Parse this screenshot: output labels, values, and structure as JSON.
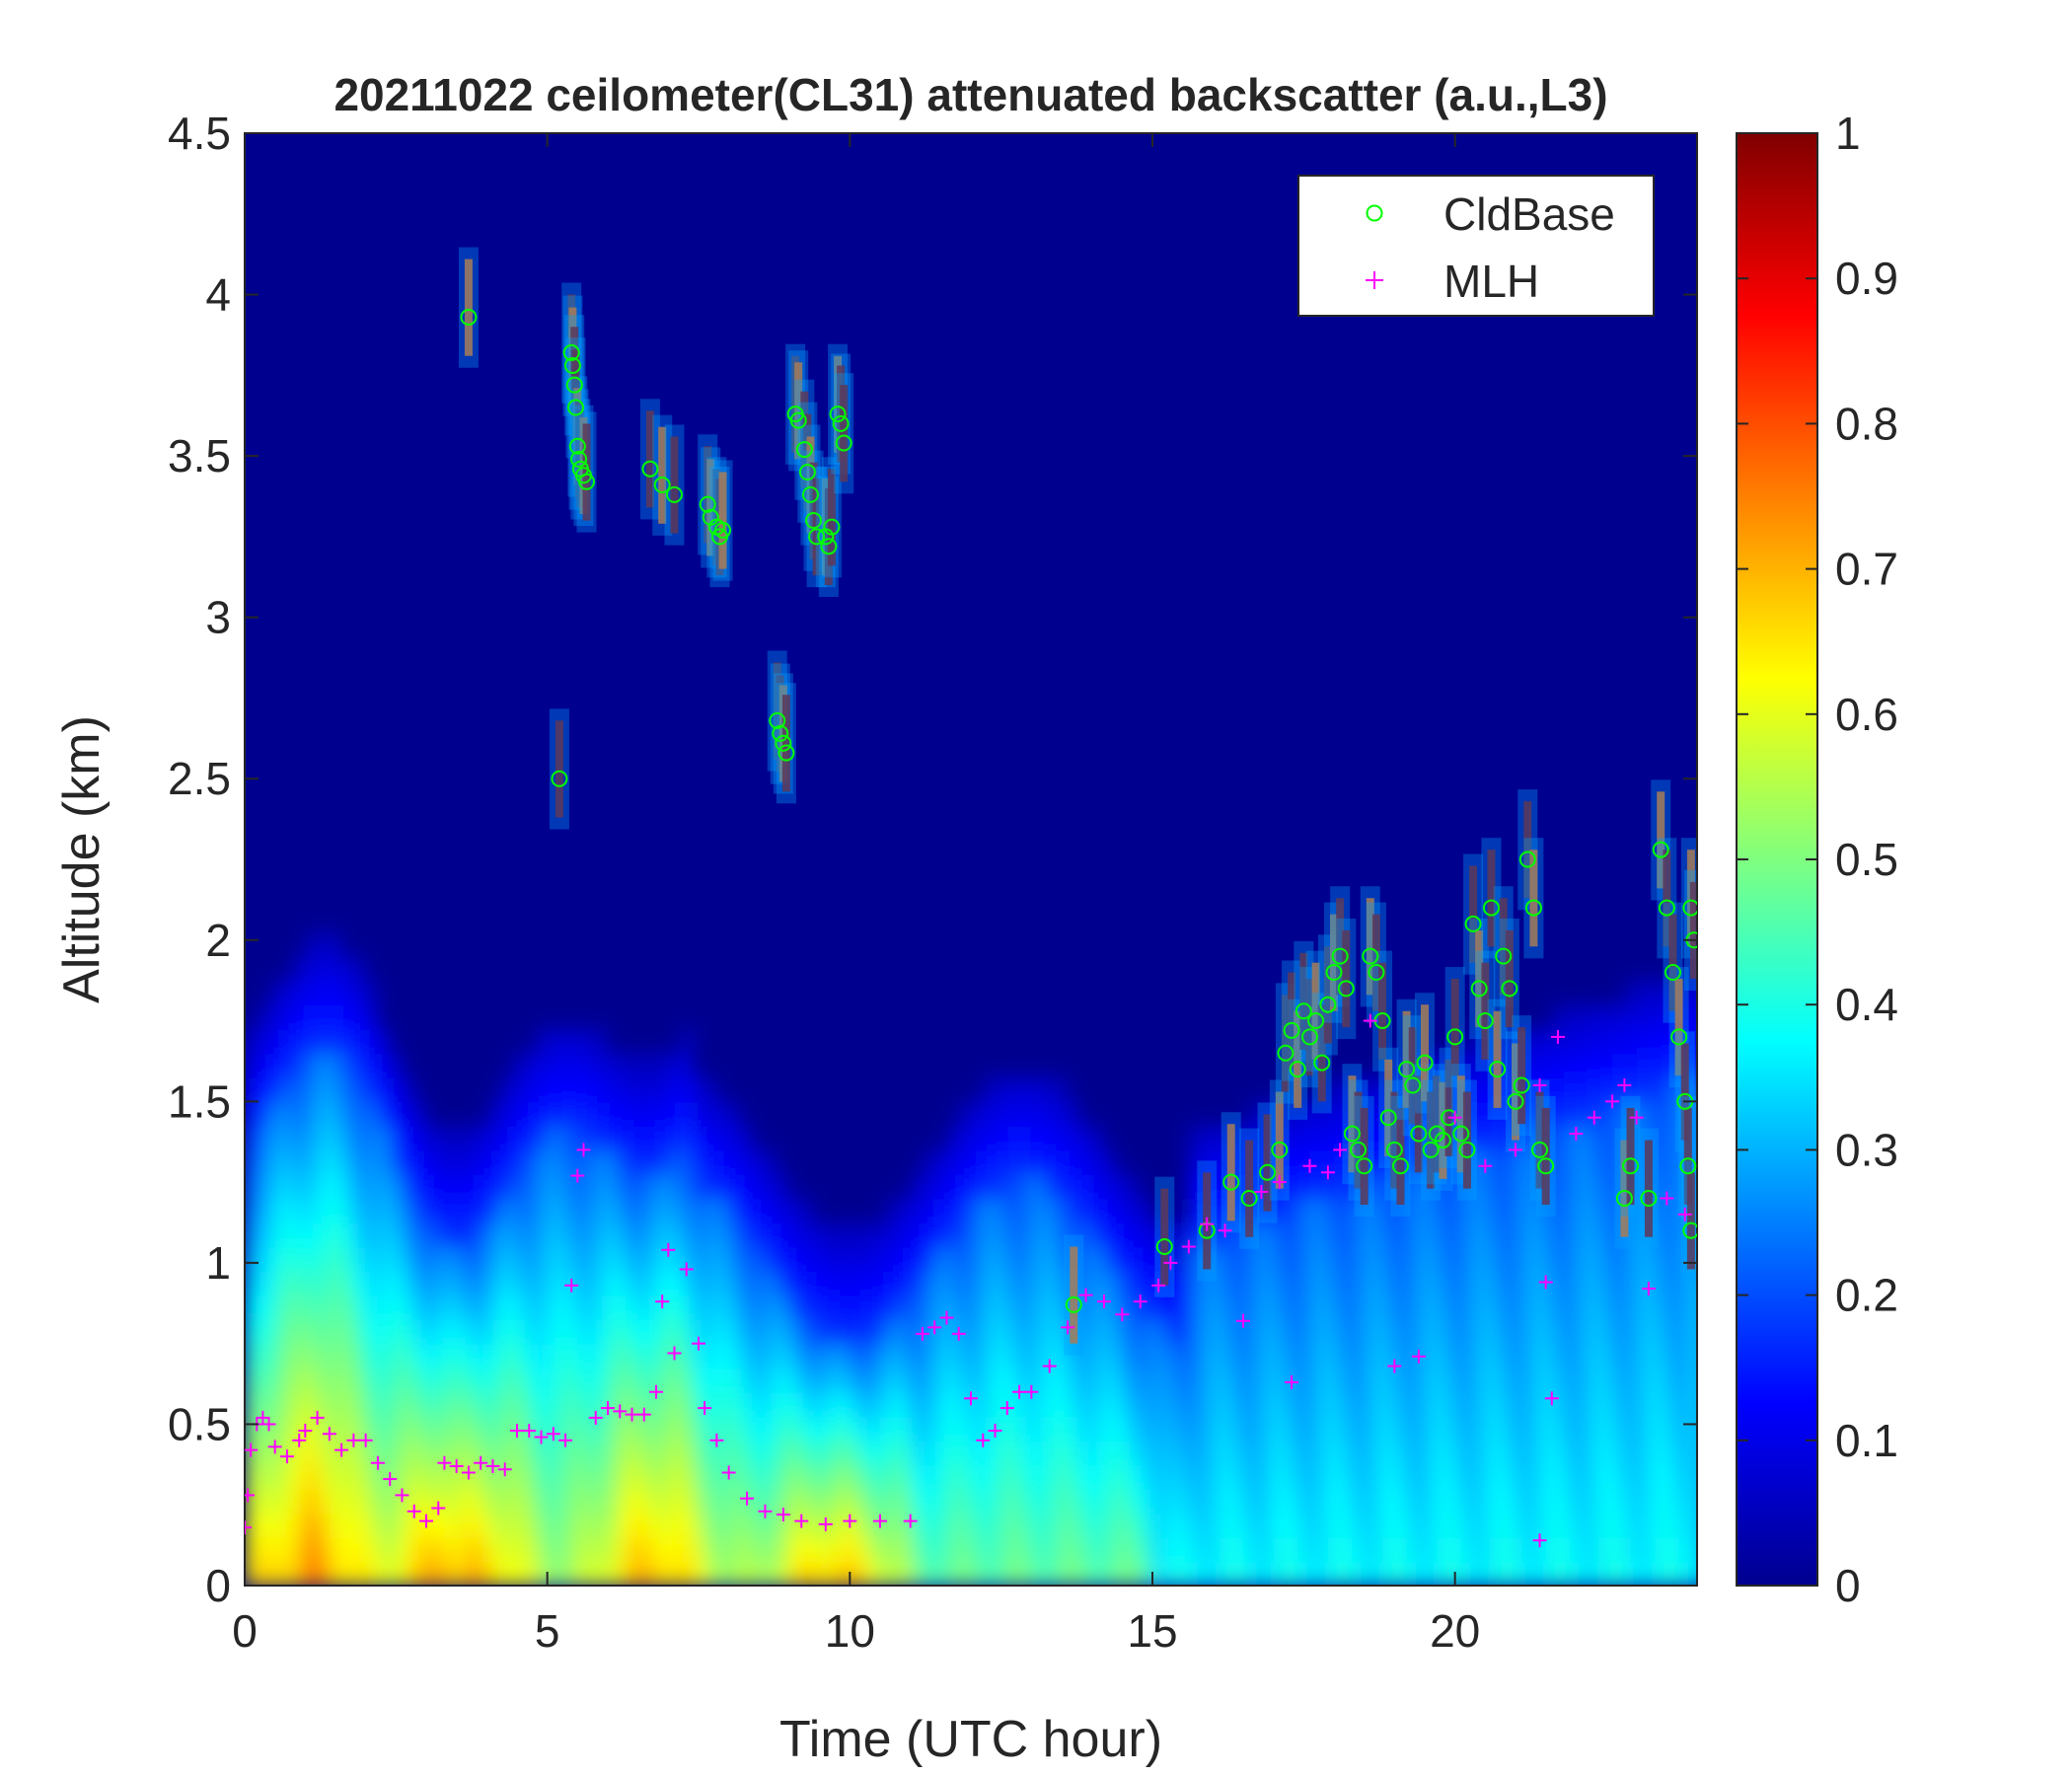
{
  "chart_data": {
    "type": "heatmap",
    "title": "20211022 ceilometer(CL31) attenuated backscatter (a.u.,L3)",
    "xlabel": "Time (UTC hour)",
    "ylabel": "Altitude (km)",
    "xlim": [
      0,
      24
    ],
    "ylim": [
      0,
      4.5
    ],
    "xticks": [
      "0",
      "5",
      "10",
      "15",
      "20"
    ],
    "xtick_values": [
      0,
      5,
      10,
      15,
      20
    ],
    "yticks": [
      "0",
      "0.5",
      "1",
      "1.5",
      "2",
      "2.5",
      "3",
      "3.5",
      "4",
      "4.5"
    ],
    "ytick_values": [
      0,
      0.5,
      1,
      1.5,
      2,
      2.5,
      3,
      3.5,
      4,
      4.5
    ],
    "colorbar": {
      "colormap": "jet",
      "range": [
        0,
        1
      ],
      "ticks": [
        "0",
        "0.1",
        "0.2",
        "0.3",
        "0.4",
        "0.5",
        "0.6",
        "0.7",
        "0.8",
        "0.9",
        "1"
      ],
      "tick_values": [
        0,
        0.1,
        0.2,
        0.3,
        0.4,
        0.5,
        0.6,
        0.7,
        0.8,
        0.9,
        1
      ]
    },
    "legend": {
      "placement": "top-right",
      "entries": [
        "CldBase",
        "MLH"
      ]
    },
    "series": [
      {
        "name": "CldBase",
        "marker": "circle",
        "color": "#00ff00",
        "points": [
          [
            3.7,
            3.93
          ],
          [
            5.2,
            2.5
          ],
          [
            5.4,
            3.82
          ],
          [
            5.42,
            3.78
          ],
          [
            5.45,
            3.72
          ],
          [
            5.47,
            3.65
          ],
          [
            5.5,
            3.53
          ],
          [
            5.52,
            3.49
          ],
          [
            5.55,
            3.46
          ],
          [
            5.6,
            3.44
          ],
          [
            5.65,
            3.42
          ],
          [
            6.7,
            3.46
          ],
          [
            6.9,
            3.41
          ],
          [
            7.1,
            3.38
          ],
          [
            7.65,
            3.35
          ],
          [
            7.7,
            3.31
          ],
          [
            7.8,
            3.28
          ],
          [
            7.85,
            3.25
          ],
          [
            7.9,
            3.27
          ],
          [
            8.8,
            2.68
          ],
          [
            8.85,
            2.64
          ],
          [
            8.9,
            2.61
          ],
          [
            8.95,
            2.58
          ],
          [
            9.1,
            3.63
          ],
          [
            9.15,
            3.61
          ],
          [
            9.25,
            3.52
          ],
          [
            9.3,
            3.45
          ],
          [
            9.35,
            3.38
          ],
          [
            9.4,
            3.3
          ],
          [
            9.45,
            3.25
          ],
          [
            9.6,
            3.25
          ],
          [
            9.65,
            3.22
          ],
          [
            9.7,
            3.28
          ],
          [
            9.8,
            3.63
          ],
          [
            9.85,
            3.6
          ],
          [
            9.9,
            3.54
          ],
          [
            13.7,
            0.87
          ],
          [
            15.2,
            1.05
          ],
          [
            15.9,
            1.1
          ],
          [
            16.3,
            1.25
          ],
          [
            16.6,
            1.2
          ],
          [
            16.9,
            1.28
          ],
          [
            17.1,
            1.35
          ],
          [
            17.2,
            1.65
          ],
          [
            17.3,
            1.72
          ],
          [
            17.4,
            1.6
          ],
          [
            17.5,
            1.78
          ],
          [
            17.6,
            1.7
          ],
          [
            17.7,
            1.75
          ],
          [
            17.8,
            1.62
          ],
          [
            17.9,
            1.8
          ],
          [
            18.0,
            1.9
          ],
          [
            18.1,
            1.95
          ],
          [
            18.2,
            1.85
          ],
          [
            18.3,
            1.4
          ],
          [
            18.4,
            1.35
          ],
          [
            18.5,
            1.3
          ],
          [
            18.6,
            1.95
          ],
          [
            18.7,
            1.9
          ],
          [
            18.8,
            1.75
          ],
          [
            18.9,
            1.45
          ],
          [
            19.0,
            1.35
          ],
          [
            19.1,
            1.3
          ],
          [
            19.2,
            1.6
          ],
          [
            19.3,
            1.55
          ],
          [
            19.4,
            1.4
          ],
          [
            19.5,
            1.62
          ],
          [
            19.6,
            1.35
          ],
          [
            19.7,
            1.4
          ],
          [
            19.8,
            1.38
          ],
          [
            19.9,
            1.45
          ],
          [
            20.0,
            1.7
          ],
          [
            20.1,
            1.4
          ],
          [
            20.2,
            1.35
          ],
          [
            20.3,
            2.05
          ],
          [
            20.4,
            1.85
          ],
          [
            20.5,
            1.75
          ],
          [
            20.6,
            2.1
          ],
          [
            20.7,
            1.6
          ],
          [
            20.8,
            1.95
          ],
          [
            20.9,
            1.85
          ],
          [
            21.0,
            1.5
          ],
          [
            21.1,
            1.55
          ],
          [
            21.2,
            2.25
          ],
          [
            21.3,
            2.1
          ],
          [
            21.4,
            1.35
          ],
          [
            21.5,
            1.3
          ],
          [
            22.8,
            1.2
          ],
          [
            22.9,
            1.3
          ],
          [
            23.2,
            1.2
          ],
          [
            23.4,
            2.28
          ],
          [
            23.5,
            2.1
          ],
          [
            23.6,
            1.9
          ],
          [
            23.7,
            1.7
          ],
          [
            23.8,
            1.5
          ],
          [
            23.85,
            1.3
          ],
          [
            23.9,
            2.1
          ],
          [
            23.95,
            2.0
          ],
          [
            23.9,
            1.1
          ]
        ]
      },
      {
        "name": "MLH",
        "marker": "plus",
        "color": "#ff00ff",
        "points": [
          [
            0.0,
            0.18
          ],
          [
            0.05,
            0.28
          ],
          [
            0.1,
            0.42
          ],
          [
            0.2,
            0.5
          ],
          [
            0.3,
            0.52
          ],
          [
            0.4,
            0.5
          ],
          [
            0.5,
            0.43
          ],
          [
            0.7,
            0.4
          ],
          [
            0.9,
            0.45
          ],
          [
            1.0,
            0.48
          ],
          [
            1.2,
            0.52
          ],
          [
            1.4,
            0.47
          ],
          [
            1.6,
            0.42
          ],
          [
            1.8,
            0.45
          ],
          [
            2.0,
            0.45
          ],
          [
            2.2,
            0.38
          ],
          [
            2.4,
            0.33
          ],
          [
            2.6,
            0.28
          ],
          [
            2.8,
            0.23
          ],
          [
            3.0,
            0.2
          ],
          [
            3.2,
            0.24
          ],
          [
            3.3,
            0.38
          ],
          [
            3.5,
            0.37
          ],
          [
            3.7,
            0.35
          ],
          [
            3.9,
            0.38
          ],
          [
            4.1,
            0.37
          ],
          [
            4.3,
            0.36
          ],
          [
            4.5,
            0.48
          ],
          [
            4.7,
            0.48
          ],
          [
            4.9,
            0.46
          ],
          [
            5.1,
            0.47
          ],
          [
            5.3,
            0.45
          ],
          [
            5.4,
            0.93
          ],
          [
            5.5,
            1.27
          ],
          [
            5.6,
            1.35
          ],
          [
            5.8,
            0.52
          ],
          [
            6.0,
            0.55
          ],
          [
            6.2,
            0.54
          ],
          [
            6.4,
            0.53
          ],
          [
            6.6,
            0.53
          ],
          [
            6.8,
            0.6
          ],
          [
            6.9,
            0.88
          ],
          [
            7.0,
            1.04
          ],
          [
            7.1,
            0.72
          ],
          [
            7.3,
            0.98
          ],
          [
            7.5,
            0.75
          ],
          [
            7.6,
            0.55
          ],
          [
            7.8,
            0.45
          ],
          [
            8.0,
            0.35
          ],
          [
            8.3,
            0.27
          ],
          [
            8.6,
            0.23
          ],
          [
            8.9,
            0.22
          ],
          [
            9.2,
            0.2
          ],
          [
            9.6,
            0.19
          ],
          [
            10.0,
            0.2
          ],
          [
            10.5,
            0.2
          ],
          [
            11.0,
            0.2
          ],
          [
            11.2,
            0.78
          ],
          [
            11.4,
            0.8
          ],
          [
            11.6,
            0.83
          ],
          [
            11.8,
            0.78
          ],
          [
            12.0,
            0.58
          ],
          [
            12.2,
            0.45
          ],
          [
            12.4,
            0.48
          ],
          [
            12.6,
            0.55
          ],
          [
            12.8,
            0.6
          ],
          [
            13.0,
            0.6
          ],
          [
            13.3,
            0.68
          ],
          [
            13.6,
            0.8
          ],
          [
            13.9,
            0.9
          ],
          [
            14.2,
            0.88
          ],
          [
            14.5,
            0.84
          ],
          [
            14.8,
            0.88
          ],
          [
            15.1,
            0.93
          ],
          [
            15.3,
            1.0
          ],
          [
            15.6,
            1.05
          ],
          [
            15.9,
            1.12
          ],
          [
            16.2,
            1.1
          ],
          [
            16.5,
            0.82
          ],
          [
            16.8,
            1.22
          ],
          [
            17.1,
            1.25
          ],
          [
            17.3,
            0.63
          ],
          [
            17.6,
            1.3
          ],
          [
            17.9,
            1.28
          ],
          [
            18.1,
            1.35
          ],
          [
            18.6,
            1.75
          ],
          [
            19.0,
            0.68
          ],
          [
            19.4,
            0.71
          ],
          [
            20.0,
            1.45
          ],
          [
            20.5,
            1.3
          ],
          [
            21.0,
            1.35
          ],
          [
            21.4,
            1.55
          ],
          [
            21.5,
            0.94
          ],
          [
            21.6,
            0.58
          ],
          [
            21.4,
            0.14
          ],
          [
            21.7,
            1.7
          ],
          [
            22.0,
            1.4
          ],
          [
            22.3,
            1.45
          ],
          [
            22.6,
            1.5
          ],
          [
            22.8,
            1.55
          ],
          [
            23.0,
            1.45
          ],
          [
            23.2,
            0.92
          ],
          [
            23.5,
            1.2
          ],
          [
            23.8,
            1.15
          ]
        ]
      }
    ]
  }
}
